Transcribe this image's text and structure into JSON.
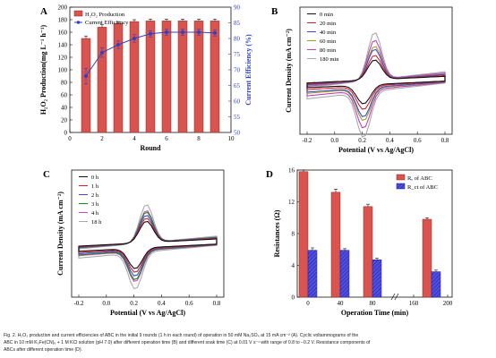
{
  "figure": {
    "caption": [
      "Fig. 2. H₂O₂ production and current efficiencies of ABC in the initial 9 rounds (1 h in each round) of operation in 50 mM Na₂SO₄ at 15 mA cm⁻² (A). Cyclic voltammograms of the",
      "ABC in 10 mM K₃Fe(CN)₆ + 1 M KCl solution (pH 7.0) after different operation time (B) and different soak time (C) at 0.01 V s⁻¹ with range of 0.8 to −0.2 V. Resistance components of",
      "ABCs after different operation time (D)."
    ]
  },
  "colors": {
    "bar_red": "#d9534f",
    "line_blue": "#3340c4",
    "bar_blue": "#3a3ad6"
  },
  "chart_data": [
    {
      "panel": "A",
      "type": "bar",
      "categories": [
        1,
        2,
        3,
        4,
        5,
        6,
        7,
        8,
        9
      ],
      "xlabel": "Round",
      "ylabel": "H₂O₂ Production(mg L⁻¹ h⁻¹)",
      "y2label": "Current Efficiency (%)",
      "xlim": [
        0,
        10
      ],
      "ylim": [
        0,
        200
      ],
      "y2lim": [
        50,
        90
      ],
      "xticks": [
        "0",
        "2",
        "4",
        "6",
        "8",
        "10"
      ],
      "yticks": [
        "0",
        "20",
        "40",
        "60",
        "80",
        "100",
        "120",
        "140",
        "160",
        "180",
        "200"
      ],
      "y2ticks": [
        "50",
        "55",
        "60",
        "65",
        "70",
        "75",
        "80",
        "85",
        "90"
      ],
      "legend": [
        "H₂O₂ Production",
        "Current Efficiency"
      ],
      "legend_position": "top-left",
      "series": [
        {
          "name": "H₂O₂ Production",
          "axis": "left",
          "values": [
            150,
            168,
            174,
            177,
            178,
            178,
            178,
            178,
            178
          ],
          "errors": [
            4,
            4,
            3,
            3,
            3,
            3,
            3,
            3,
            3
          ]
        },
        {
          "name": "Current Efficiency",
          "axis": "right",
          "values": [
            68,
            75.5,
            78,
            80,
            81.5,
            82,
            82,
            82,
            81.8
          ],
          "errors": [
            2.5,
            1.5,
            1.2,
            1.2,
            1,
            1,
            1,
            1,
            1
          ]
        }
      ]
    },
    {
      "panel": "B",
      "type": "line",
      "xlabel": "Potential (V vs Ag/AgCl)",
      "ylabel": "Current Density (mA cm⁻²)",
      "xlim": [
        -0.2,
        0.8
      ],
      "xticks": [
        "-0.2",
        "0.0",
        "0.2",
        "0.4",
        "0.6",
        "0.8"
      ],
      "legend_position": "top-left",
      "series": [
        {
          "name": "0   min",
          "color": "#111111",
          "scale": 0.65
        },
        {
          "name": "20  min",
          "color": "#d8202a",
          "scale": 0.8
        },
        {
          "name": "40  min",
          "color": "#3a4fd0",
          "scale": 1.0
        },
        {
          "name": "60  min",
          "color": "#a0a020",
          "scale": 1.1
        },
        {
          "name": "80  min",
          "color": "#c040c0",
          "scale": 1.3
        },
        {
          "name": "180 min",
          "color": "#aaaaaa",
          "scale": 1.55
        }
      ]
    },
    {
      "panel": "C",
      "type": "line",
      "xlabel": "Potential (V vs Ag/AgCl)",
      "ylabel": "Current Density (mA cm⁻²)",
      "xlim": [
        -0.2,
        0.8
      ],
      "xticks": [
        "-0.2",
        "0.0",
        "0.2",
        "0.4",
        "0.6",
        "0.8"
      ],
      "legend_position": "top-left",
      "series": [
        {
          "name": "0  h",
          "color": "#111111",
          "scale": 0.7
        },
        {
          "name": "1  h",
          "color": "#d8202a",
          "scale": 0.8
        },
        {
          "name": "2  h",
          "color": "#3a4fd0",
          "scale": 0.9
        },
        {
          "name": "3  h",
          "color": "#1a8a1a",
          "scale": 1.0
        },
        {
          "name": "4  h",
          "color": "#d040c0",
          "scale": 1.05
        },
        {
          "name": "18  h",
          "color": "#aaaaaa",
          "scale": 1.25
        }
      ]
    },
    {
      "panel": "D",
      "type": "bar",
      "categories": [
        "0",
        "40",
        "80",
        "180"
      ],
      "xlabel": "Operation Time (min)",
      "ylabel": "Resistances (Ω)",
      "ylim": [
        0,
        16
      ],
      "xticks": [
        "0",
        "40",
        "80",
        "160",
        "200"
      ],
      "yticks": [
        "0",
        "4",
        "8",
        "12",
        "16"
      ],
      "legend": [
        "Rₑ of ABC",
        "R_ct of ABC"
      ],
      "legend_position": "top-right",
      "series": [
        {
          "name": "Rₑ of ABC",
          "values": [
            15.8,
            13.2,
            11.4,
            9.8
          ],
          "errors": [
            0.2,
            0.4,
            0.3,
            0.2
          ]
        },
        {
          "name": "R_ct of ABC",
          "values": [
            5.9,
            5.9,
            4.7,
            3.2
          ],
          "errors": [
            0.3,
            0.2,
            0.2,
            0.2
          ]
        }
      ]
    }
  ]
}
